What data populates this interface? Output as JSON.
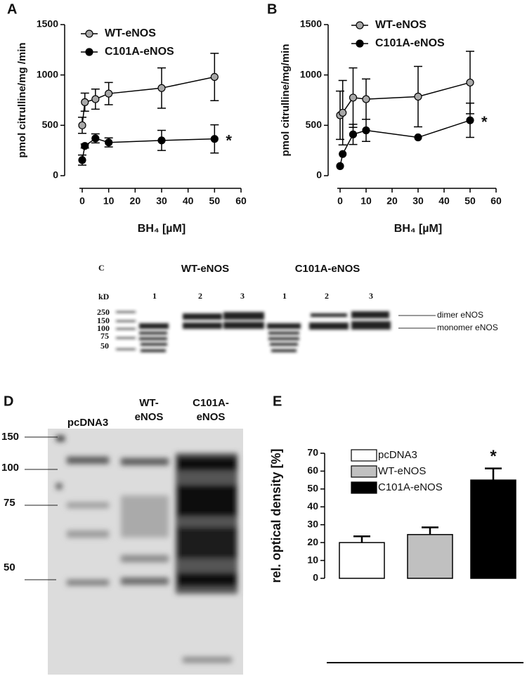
{
  "chart_data": [
    {
      "type": "line",
      "title": "A",
      "xlabel": "BH₄ [µM]",
      "ylabel": "pmol citrulline/mg /min",
      "x": [
        0,
        1,
        5,
        10,
        30,
        50
      ],
      "xlim": [
        0,
        60
      ],
      "xticks": [
        0,
        10,
        20,
        30,
        40,
        50,
        60
      ],
      "ylim": [
        0,
        1500
      ],
      "yticks": [
        0,
        500,
        1000,
        1500
      ],
      "annotation": "*",
      "series": [
        {
          "name": "WT-eNOS",
          "color": "#a8a8a8",
          "values": [
            500,
            730,
            760,
            815,
            870,
            980
          ],
          "errors": [
            80,
            90,
            100,
            110,
            200,
            235
          ]
        },
        {
          "name": "C101A-eNOS",
          "color": "#000000",
          "values": [
            155,
            295,
            370,
            330,
            350,
            365
          ],
          "errors": [
            50,
            20,
            45,
            45,
            100,
            140
          ]
        }
      ]
    },
    {
      "type": "line",
      "title": "B",
      "xlabel": "BH₄ [µM]",
      "ylabel": "pmol citrulline/mg/min",
      "x": [
        0,
        1,
        5,
        10,
        30,
        50
      ],
      "xlim": [
        0,
        60
      ],
      "xticks": [
        0,
        10,
        20,
        30,
        40,
        50,
        60
      ],
      "ylim": [
        0,
        1500
      ],
      "yticks": [
        0,
        500,
        1000,
        1500
      ],
      "annotation": "*",
      "series": [
        {
          "name": "WT-eNOS",
          "color": "#a8a8a8",
          "values": [
            600,
            625,
            775,
            760,
            785,
            925
          ],
          "errors": [
            240,
            320,
            295,
            200,
            300,
            310
          ]
        },
        {
          "name": "C101A-eNOS",
          "color": "#000000",
          "values": [
            95,
            215,
            410,
            450,
            380,
            550
          ],
          "errors": [
            0,
            0,
            100,
            110,
            0,
            170
          ]
        }
      ]
    },
    {
      "type": "bar",
      "title": "E",
      "ylabel": "rel. optical density [%]",
      "categories": [
        "pcDNA3",
        "WT-eNOS",
        "C101A-eNOS"
      ],
      "values": [
        20,
        24.5,
        55
      ],
      "errors": [
        3.5,
        4,
        6.5
      ],
      "colors": [
        "#ffffff",
        "#c0c0c0",
        "#000000"
      ],
      "ylim": [
        0,
        70
      ],
      "yticks": [
        0,
        10,
        20,
        30,
        40,
        50,
        60,
        70
      ],
      "annotation": "*"
    }
  ],
  "blot_c": {
    "title": "C",
    "groups": [
      "WT-eNOS",
      "C101A-eNOS"
    ],
    "unit": "kD",
    "lanes": [
      "1",
      "2",
      "3",
      "1",
      "2",
      "3"
    ],
    "markers": [
      "250",
      "150",
      "100",
      "75",
      "50"
    ],
    "bands": [
      "dimer eNOS",
      "monomer eNOS"
    ]
  },
  "blot_d": {
    "title": "D",
    "lanes": [
      "pcDNA3",
      "WT-",
      "eNOS",
      "C101A-",
      "eNOS"
    ],
    "markers": [
      "150",
      "100",
      "75",
      "50"
    ]
  }
}
